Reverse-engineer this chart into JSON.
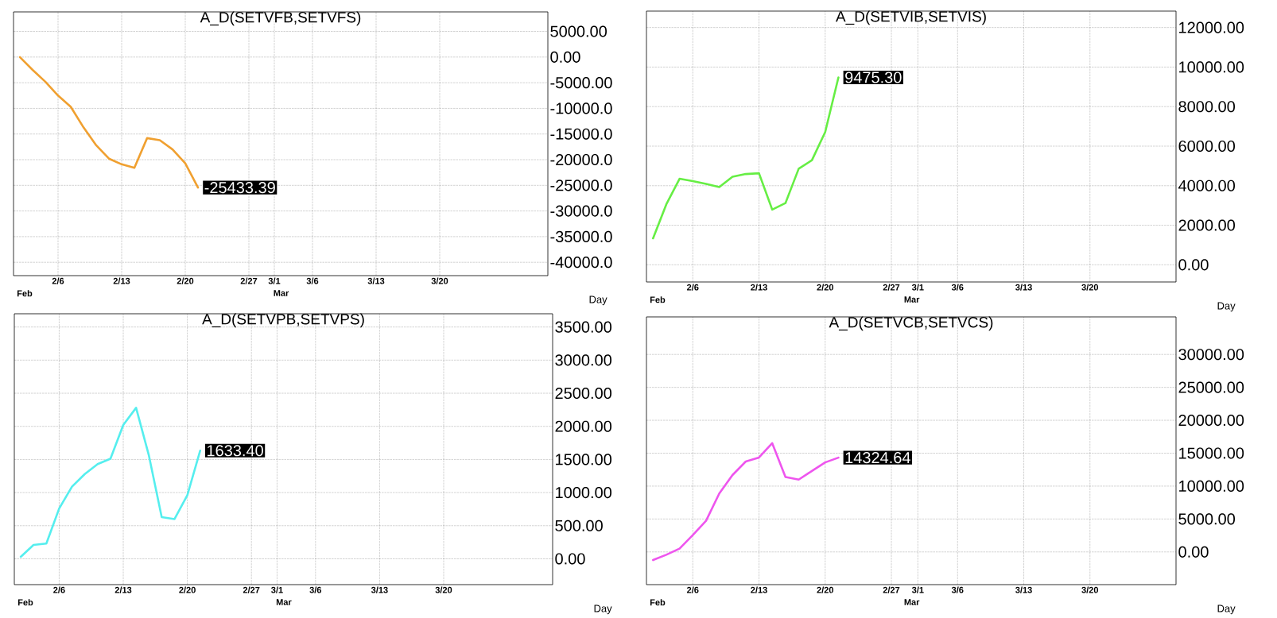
{
  "chart_data": [
    {
      "type": "line",
      "title": "A_D(SETVFB,SETVFS)",
      "xlabel": "Day",
      "color": "#f0a030",
      "grid": true,
      "categories": [
        null,
        null,
        null,
        "2/6",
        null,
        null,
        null,
        null,
        "2/13",
        null,
        null,
        null,
        null,
        "2/20",
        null,
        null,
        null,
        null,
        "2/27",
        null,
        "3/1",
        null,
        null,
        "3/6",
        null,
        null,
        null,
        null,
        "3/13",
        null,
        null,
        null,
        null,
        "3/20",
        null,
        null,
        null,
        null,
        null,
        null,
        null,
        null
      ],
      "values": [
        0,
        -2500,
        -4800,
        -7500,
        -9700,
        -13700,
        -17200,
        -19800,
        -20900,
        -21600,
        -15800,
        -16200,
        -18000,
        -20700,
        -25433.39,
        null,
        null,
        null,
        null,
        null,
        null,
        null,
        null,
        null,
        null,
        null,
        null,
        null,
        null,
        null,
        null,
        null,
        null,
        null,
        null,
        null,
        null,
        null,
        null,
        null,
        null,
        null
      ],
      "value_labels": [
        null,
        null,
        null,
        null,
        null,
        null,
        null,
        null,
        null,
        null,
        null,
        null,
        null,
        null,
        "-25433.39",
        null,
        null,
        null,
        null,
        null,
        null,
        null,
        null,
        null,
        null,
        null,
        null,
        null,
        null,
        null,
        null,
        null,
        null,
        null,
        null,
        null,
        null,
        null,
        null,
        null,
        null,
        null
      ],
      "ylim": [
        -42600,
        8800
      ],
      "yticks": [
        {
          "value": 5000,
          "label": "5000.00"
        },
        {
          "value": 0,
          "label": "0.00"
        },
        {
          "value": -5000,
          "label": "-5000.00"
        },
        {
          "value": -10000,
          "label": "-10000.0"
        },
        {
          "value": -15000,
          "label": "-15000.0"
        },
        {
          "value": -20000,
          "label": "-20000.0"
        },
        {
          "value": -25000,
          "label": "-25000.0"
        },
        {
          "value": -30000,
          "label": "-30000.0"
        },
        {
          "value": -35000,
          "label": "-35000.0"
        },
        {
          "value": -40000,
          "label": "-40000.0"
        }
      ],
      "annotations": [
        "Feb",
        "Mar"
      ]
    },
    {
      "type": "line",
      "title": "A_D(SETVIB,SETVIS)",
      "xlabel": "Day",
      "color": "#66ee44",
      "grid": true,
      "categories": [
        null,
        null,
        null,
        "2/6",
        null,
        null,
        null,
        null,
        "2/13",
        null,
        null,
        null,
        null,
        "2/20",
        null,
        null,
        null,
        null,
        "2/27",
        null,
        "3/1",
        null,
        null,
        "3/6",
        null,
        null,
        null,
        null,
        "3/13",
        null,
        null,
        null,
        null,
        "3/20",
        null,
        null,
        null,
        null,
        null,
        null
      ],
      "values": [
        1340,
        3060,
        4350,
        4230,
        4090,
        3930,
        4450,
        4590,
        4630,
        2790,
        3120,
        4860,
        5290,
        6710,
        9475.3,
        null,
        null,
        null,
        null,
        null,
        null,
        null,
        null,
        null,
        null,
        null,
        null,
        null,
        null,
        null,
        null,
        null,
        null,
        null,
        null,
        null,
        null,
        null,
        null,
        null
      ],
      "value_labels": [
        null,
        null,
        null,
        null,
        null,
        null,
        null,
        null,
        null,
        null,
        null,
        null,
        null,
        null,
        "9475.30",
        null,
        null,
        null,
        null,
        null,
        null,
        null,
        null,
        null,
        null,
        null,
        null,
        null,
        null,
        null,
        null,
        null,
        null,
        null,
        null,
        null,
        null,
        null,
        null,
        null
      ],
      "ylim": [
        -870,
        12830
      ],
      "yticks": [
        {
          "value": 0,
          "label": "0.00"
        },
        {
          "value": 2000,
          "label": "2000.00"
        },
        {
          "value": 4000,
          "label": "4000.00"
        },
        {
          "value": 6000,
          "label": "6000.00"
        },
        {
          "value": 8000,
          "label": "8000.00"
        },
        {
          "value": 10000,
          "label": "10000.00"
        },
        {
          "value": 12000,
          "label": "12000.00"
        }
      ],
      "annotations": [
        "Feb",
        "Mar"
      ]
    },
    {
      "type": "line",
      "title": "A_D(SETVPB,SETVPS)",
      "xlabel": "Day",
      "color": "#55eeee",
      "grid": true,
      "categories": [
        null,
        null,
        null,
        "2/6",
        null,
        null,
        null,
        null,
        "2/13",
        null,
        null,
        null,
        null,
        "2/20",
        null,
        null,
        null,
        null,
        "2/27",
        null,
        "3/1",
        null,
        null,
        "3/6",
        null,
        null,
        null,
        null,
        "3/13",
        null,
        null,
        null,
        null,
        "3/20",
        null,
        null,
        null,
        null,
        null,
        null,
        null,
        null
      ],
      "values": [
        30,
        210,
        230,
        760,
        1090,
        1280,
        1430,
        1510,
        2020,
        2280,
        1560,
        630,
        600,
        960,
        1633.4,
        null,
        null,
        null,
        null,
        null,
        null,
        null,
        null,
        null,
        null,
        null,
        null,
        null,
        null,
        null,
        null,
        null,
        null,
        null,
        null,
        null,
        null,
        null,
        null,
        null,
        null,
        null
      ],
      "value_labels": [
        null,
        null,
        null,
        null,
        null,
        null,
        null,
        null,
        null,
        null,
        null,
        null,
        null,
        null,
        "1633.40",
        null,
        null,
        null,
        null,
        null,
        null,
        null,
        null,
        null,
        null,
        null,
        null,
        null,
        null,
        null,
        null,
        null,
        null,
        null,
        null,
        null,
        null,
        null,
        null,
        null,
        null,
        null
      ],
      "ylim": [
        -390,
        3700
      ],
      "yticks": [
        {
          "value": 0,
          "label": "0.00"
        },
        {
          "value": 500,
          "label": "500.00"
        },
        {
          "value": 1000,
          "label": "1000.00"
        },
        {
          "value": 1500,
          "label": "1500.00"
        },
        {
          "value": 2000,
          "label": "2000.00"
        },
        {
          "value": 2500,
          "label": "2500.00"
        },
        {
          "value": 3000,
          "label": "3000.00"
        },
        {
          "value": 3500,
          "label": "3500.00"
        }
      ],
      "annotations": [
        "Feb",
        "Mar"
      ]
    },
    {
      "type": "line",
      "title": "A_D(SETVCB,SETVCS)",
      "xlabel": "Day",
      "color": "#ee55ee",
      "grid": true,
      "categories": [
        null,
        null,
        null,
        "2/6",
        null,
        null,
        null,
        null,
        "2/13",
        null,
        null,
        null,
        null,
        "2/20",
        null,
        null,
        null,
        null,
        "2/27",
        null,
        "3/1",
        null,
        null,
        "3/6",
        null,
        null,
        null,
        null,
        "3/13",
        null,
        null,
        null,
        null,
        "3/20",
        null,
        null,
        null,
        null,
        null,
        null
      ],
      "values": [
        -1240,
        -430,
        500,
        2550,
        4720,
        8880,
        11680,
        13730,
        14350,
        16520,
        11370,
        10990,
        12300,
        13600,
        14324.64,
        null,
        null,
        null,
        null,
        null,
        null,
        null,
        null,
        null,
        null,
        null,
        null,
        null,
        null,
        null,
        null,
        null,
        null,
        null,
        null,
        null,
        null,
        null,
        null,
        null
      ],
      "value_labels": [
        null,
        null,
        null,
        null,
        null,
        null,
        null,
        null,
        null,
        null,
        null,
        null,
        null,
        null,
        "14324.64",
        null,
        null,
        null,
        null,
        null,
        null,
        null,
        null,
        null,
        null,
        null,
        null,
        null,
        null,
        null,
        null,
        null,
        null,
        null,
        null,
        null,
        null,
        null,
        null,
        null
      ],
      "ylim": [
        -4970,
        35700
      ],
      "yticks": [
        {
          "value": 0,
          "label": "0.00"
        },
        {
          "value": 5000,
          "label": "5000.00"
        },
        {
          "value": 10000,
          "label": "10000.00"
        },
        {
          "value": 15000,
          "label": "15000.00"
        },
        {
          "value": 20000,
          "label": "20000.00"
        },
        {
          "value": 25000,
          "label": "25000.00"
        },
        {
          "value": 30000,
          "label": "30000.00"
        }
      ],
      "annotations": [
        "Feb",
        "Mar"
      ]
    }
  ]
}
